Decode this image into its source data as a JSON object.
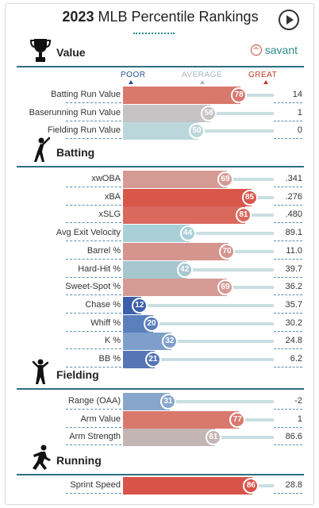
{
  "header": {
    "year": "2023",
    "title": "MLB Percentile Rankings"
  },
  "brand": {
    "name": "savant"
  },
  "legend": {
    "poor": "POOR",
    "average": "AVERAGE",
    "great": "GREAT"
  },
  "sections": [
    {
      "title": "Value",
      "icon": "trophy-icon",
      "rows": [
        {
          "label": "Batting Run Value",
          "percentile": 78,
          "value": "14",
          "color": "#d9786d"
        },
        {
          "label": "Baserunning Run Value",
          "percentile": 58,
          "value": "1",
          "color": "#c5c3c4"
        },
        {
          "label": "Fielding Run Value",
          "percentile": 50,
          "value": "0",
          "color": "#bcd7db"
        }
      ]
    },
    {
      "title": "Batting",
      "icon": "batter-icon",
      "rows": [
        {
          "label": "xwOBA",
          "percentile": 69,
          "value": ".341",
          "color": "#d69a94"
        },
        {
          "label": "xBA",
          "percentile": 85,
          "value": ".276",
          "color": "#d9564b"
        },
        {
          "label": "xSLG",
          "percentile": 81,
          "value": ".480",
          "color": "#d9685d"
        },
        {
          "label": "Avg Exit Velocity",
          "percentile": 44,
          "value": "89.1",
          "color": "#a9d0d7"
        },
        {
          "label": "Barrel %",
          "percentile": 70,
          "value": "11.0",
          "color": "#d6948e"
        },
        {
          "label": "Hard-Hit %",
          "percentile": 42,
          "value": "39.7",
          "color": "#a7c7cf"
        },
        {
          "label": "Sweet-Spot %",
          "percentile": 69,
          "value": "36.2",
          "color": "#d69a94"
        },
        {
          "label": "Chase %",
          "percentile": 12,
          "value": "35.7",
          "color": "#3b5fab"
        },
        {
          "label": "Whiff %",
          "percentile": 20,
          "value": "30.2",
          "color": "#5a7fbd"
        },
        {
          "label": "K %",
          "percentile": 32,
          "value": "24.8",
          "color": "#7f9fcb"
        },
        {
          "label": "BB %",
          "percentile": 21,
          "value": "6.2",
          "color": "#5575b6"
        }
      ]
    },
    {
      "title": "Fielding",
      "icon": "fielder-icon",
      "rows": [
        {
          "label": "Range (OAA)",
          "percentile": 31,
          "value": "-2",
          "color": "#88a6cc"
        },
        {
          "label": "Arm Value",
          "percentile": 77,
          "value": "1",
          "color": "#d9786d"
        },
        {
          "label": "Arm Strength",
          "percentile": 61,
          "value": "86.6",
          "color": "#c4b5b5"
        }
      ]
    },
    {
      "title": "Running",
      "icon": "runner-icon",
      "rows": [
        {
          "label": "Sprint Speed",
          "percentile": 86,
          "value": "28.8",
          "color": "#d9534a"
        }
      ]
    }
  ]
}
